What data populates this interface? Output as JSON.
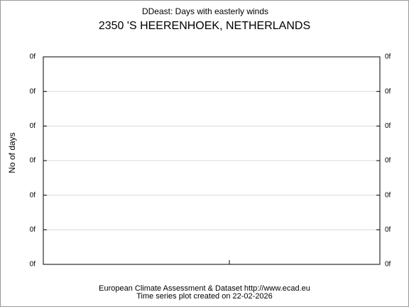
{
  "chart_data": {
    "type": "line",
    "title": "DDeast: Days with easterly winds",
    "subtitle": "2350 'S HEERENHOEK, NETHERLANDS",
    "y_label": "No of days",
    "footer": [
      "European Climate Assessment & Dataset  http://www.ecad.eu",
      "Time series plot created on 22-02-2026"
    ],
    "ylim": [
      0,
      6
    ],
    "yticks": [
      {
        "value": 0,
        "label": "0f"
      },
      {
        "value": 1,
        "label": "0f"
      },
      {
        "value": 2,
        "label": "0f"
      },
      {
        "value": 3,
        "label": "0f"
      },
      {
        "value": 4,
        "label": "0f"
      },
      {
        "value": 5,
        "label": "0f"
      },
      {
        "value": 6,
        "label": "0f"
      }
    ],
    "grid": true
  }
}
